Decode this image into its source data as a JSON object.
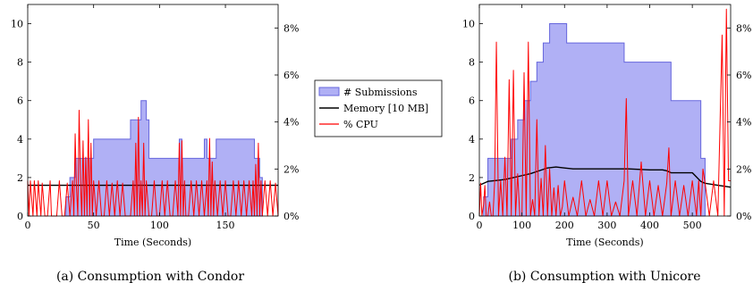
{
  "captions": [
    "(a) Consumption with Condor",
    "(b) Consumption with Unicore"
  ],
  "legend": {
    "placement": "between-panels",
    "entries": [
      {
        "label": "# Submissions",
        "color": "#6666dd",
        "fill": "#b0b0f5"
      },
      {
        "label": "Memory [10 MB]",
        "color": "#000000"
      },
      {
        "label": "% CPU",
        "color": "#ff0000"
      }
    ]
  },
  "chart_data": [
    {
      "type": "line",
      "xlabel": "Time (Seconds)",
      "xlim": [
        0,
        190
      ],
      "ylim_left": [
        0,
        11
      ],
      "ylim_right": [
        0,
        9
      ],
      "xticks": [
        0,
        50,
        100,
        150
      ],
      "yticks_left": [
        0,
        2,
        4,
        6,
        8,
        10
      ],
      "yticks_right": [
        0,
        2,
        4,
        6,
        8
      ],
      "yticks_right_labels": [
        "0%",
        "2%",
        "4%",
        "6%",
        "8%"
      ],
      "grid": false,
      "series": [
        {
          "name": "# Submissions",
          "kind": "area-step",
          "axis": "left",
          "x": [
            29,
            32,
            33,
            36,
            37,
            40,
            50,
            76,
            78,
            82,
            86,
            90,
            92,
            100,
            115,
            117,
            122,
            134,
            136,
            140,
            143,
            172,
            176,
            178
          ],
          "y": [
            1,
            2,
            2,
            3,
            3,
            3,
            4,
            4,
            5,
            5,
            6,
            5,
            3,
            3,
            4,
            3,
            3,
            4,
            3,
            3,
            4,
            3,
            2,
            0
          ]
        },
        {
          "name": "Memory [10 MB]",
          "kind": "line",
          "axis": "left",
          "x": [
            0,
            190
          ],
          "y": [
            1.6,
            1.6
          ]
        },
        {
          "name": "% CPU",
          "kind": "line",
          "axis": "right",
          "x": [
            0,
            1,
            2,
            4,
            5,
            7,
            8,
            10,
            11,
            13,
            15,
            17,
            18,
            20,
            22,
            24,
            26,
            28,
            30,
            32,
            34,
            35,
            36,
            37,
            38,
            39,
            40,
            41,
            42,
            43,
            44,
            45,
            46,
            47,
            48,
            49,
            50,
            52,
            54,
            56,
            58,
            60,
            62,
            64,
            66,
            68,
            70,
            72,
            74,
            76,
            78,
            80,
            81,
            82,
            83,
            84,
            85,
            86,
            87,
            88,
            89,
            90,
            92,
            94,
            96,
            98,
            100,
            102,
            104,
            106,
            108,
            110,
            112,
            114,
            115,
            116,
            117,
            118,
            119,
            120,
            122,
            124,
            126,
            128,
            130,
            132,
            134,
            136,
            137,
            138,
            139,
            140,
            141,
            142,
            144,
            146,
            148,
            150,
            152,
            154,
            156,
            158,
            160,
            162,
            164,
            166,
            168,
            170,
            171,
            172,
            173,
            174,
            175,
            176,
            177,
            178,
            180,
            182,
            184,
            186,
            188,
            190
          ],
          "y": [
            1.5,
            0,
            1.5,
            0,
            1.5,
            0,
            1.5,
            0,
            1.4,
            0,
            0,
            1.5,
            0,
            0,
            0,
            1.5,
            0,
            0,
            1.4,
            0,
            1.5,
            0,
            3.5,
            1.2,
            0,
            4.5,
            1.5,
            0,
            3.2,
            0,
            2.5,
            0,
            4.1,
            0,
            3.1,
            0,
            1.5,
            0,
            1.5,
            0,
            0,
            1.5,
            0,
            1.4,
            0,
            1.5,
            0,
            1.4,
            0,
            0,
            0,
            1.5,
            0,
            3.1,
            0,
            4.2,
            0,
            1.5,
            0,
            3.1,
            0,
            1.5,
            0,
            0,
            1.5,
            0,
            0,
            1.5,
            0,
            1.5,
            0,
            0,
            1.5,
            0,
            3.1,
            0,
            3.2,
            0,
            1.5,
            0,
            0,
            1.5,
            0,
            1.5,
            0,
            1.5,
            0,
            1.5,
            0,
            3.3,
            0,
            2.3,
            0,
            1.5,
            0,
            1.5,
            0,
            1.5,
            0,
            0,
            1.5,
            0,
            1.5,
            0,
            1.5,
            0,
            1.5,
            0,
            1.5,
            0,
            2.2,
            0,
            3.1,
            0,
            1.5,
            0,
            1.5,
            0,
            1.5,
            0,
            1.4,
            0
          ]
        }
      ]
    },
    {
      "type": "line",
      "xlabel": "Time (Seconds)",
      "xlim": [
        0,
        590
      ],
      "ylim_left": [
        0,
        11
      ],
      "ylim_right": [
        0,
        9
      ],
      "xticks": [
        0,
        100,
        200,
        300,
        400,
        500
      ],
      "yticks_left": [
        0,
        2,
        4,
        6,
        8,
        10
      ],
      "yticks_right": [
        0,
        2,
        4,
        6,
        8
      ],
      "yticks_right_labels": [
        "0%",
        "2%",
        "4%",
        "6%",
        "8%"
      ],
      "grid": false,
      "series": [
        {
          "name": "# Submissions",
          "kind": "area-step",
          "axis": "left",
          "x": [
            10,
            20,
            40,
            60,
            75,
            90,
            105,
            120,
            135,
            150,
            165,
            180,
            205,
            215,
            340,
            350,
            450,
            460,
            510,
            520,
            530
          ],
          "y": [
            1,
            3,
            3,
            3,
            4,
            5,
            6,
            7,
            8,
            9,
            10,
            10,
            9,
            9,
            8,
            8,
            6,
            6,
            6,
            3,
            0
          ]
        },
        {
          "name": "Memory [10 MB]",
          "kind": "line",
          "axis": "left",
          "x": [
            0,
            10,
            20,
            40,
            60,
            80,
            100,
            120,
            140,
            160,
            180,
            200,
            220,
            250,
            300,
            350,
            400,
            430,
            440,
            450,
            500,
            520,
            530,
            560,
            590
          ],
          "y": [
            1.6,
            1.7,
            1.8,
            1.85,
            1.9,
            2.0,
            2.1,
            2.2,
            2.35,
            2.5,
            2.55,
            2.5,
            2.45,
            2.45,
            2.45,
            2.45,
            2.4,
            2.4,
            2.35,
            2.25,
            2.25,
            1.8,
            1.7,
            1.6,
            1.5
          ]
        },
        {
          "name": "% CPU",
          "kind": "line",
          "axis": "right",
          "x": [
            0,
            3,
            6,
            10,
            13,
            16,
            20,
            24,
            28,
            32,
            36,
            40,
            45,
            50,
            55,
            60,
            65,
            70,
            75,
            80,
            85,
            90,
            95,
            100,
            105,
            110,
            115,
            120,
            125,
            130,
            135,
            140,
            145,
            150,
            155,
            160,
            165,
            170,
            175,
            180,
            185,
            190,
            195,
            200,
            210,
            220,
            230,
            240,
            250,
            260,
            270,
            280,
            290,
            300,
            310,
            320,
            330,
            340,
            345,
            350,
            360,
            370,
            380,
            390,
            400,
            410,
            420,
            430,
            440,
            445,
            450,
            460,
            470,
            480,
            490,
            500,
            510,
            515,
            520,
            525,
            530,
            540,
            550,
            560,
            570,
            575,
            580,
            585,
            590
          ],
          "y": [
            0,
            1.4,
            0,
            0.5,
            1.3,
            0,
            0,
            0.6,
            0,
            0,
            1.5,
            7.4,
            0,
            1.5,
            0,
            2.5,
            0,
            5.8,
            0,
            6.2,
            0,
            1.8,
            0,
            0,
            6.1,
            0,
            7.4,
            0,
            0.7,
            0,
            4.1,
            0,
            1.6,
            0,
            3.0,
            0,
            2.0,
            0,
            1.2,
            0,
            1.3,
            0,
            0.4,
            1.5,
            0,
            0.8,
            0,
            1.5,
            0,
            0.7,
            0,
            1.5,
            0,
            1.5,
            0,
            0.6,
            0,
            1.5,
            5.0,
            0,
            1.5,
            0,
            2.3,
            0,
            1.5,
            0,
            1.3,
            0,
            1.4,
            2.9,
            0,
            1.5,
            0,
            1.3,
            0,
            1.5,
            0,
            1.5,
            0,
            2.0,
            1.4,
            0,
            1.5,
            0,
            7.7,
            0,
            8.8,
            1.5,
            1.5
          ]
        }
      ]
    }
  ]
}
